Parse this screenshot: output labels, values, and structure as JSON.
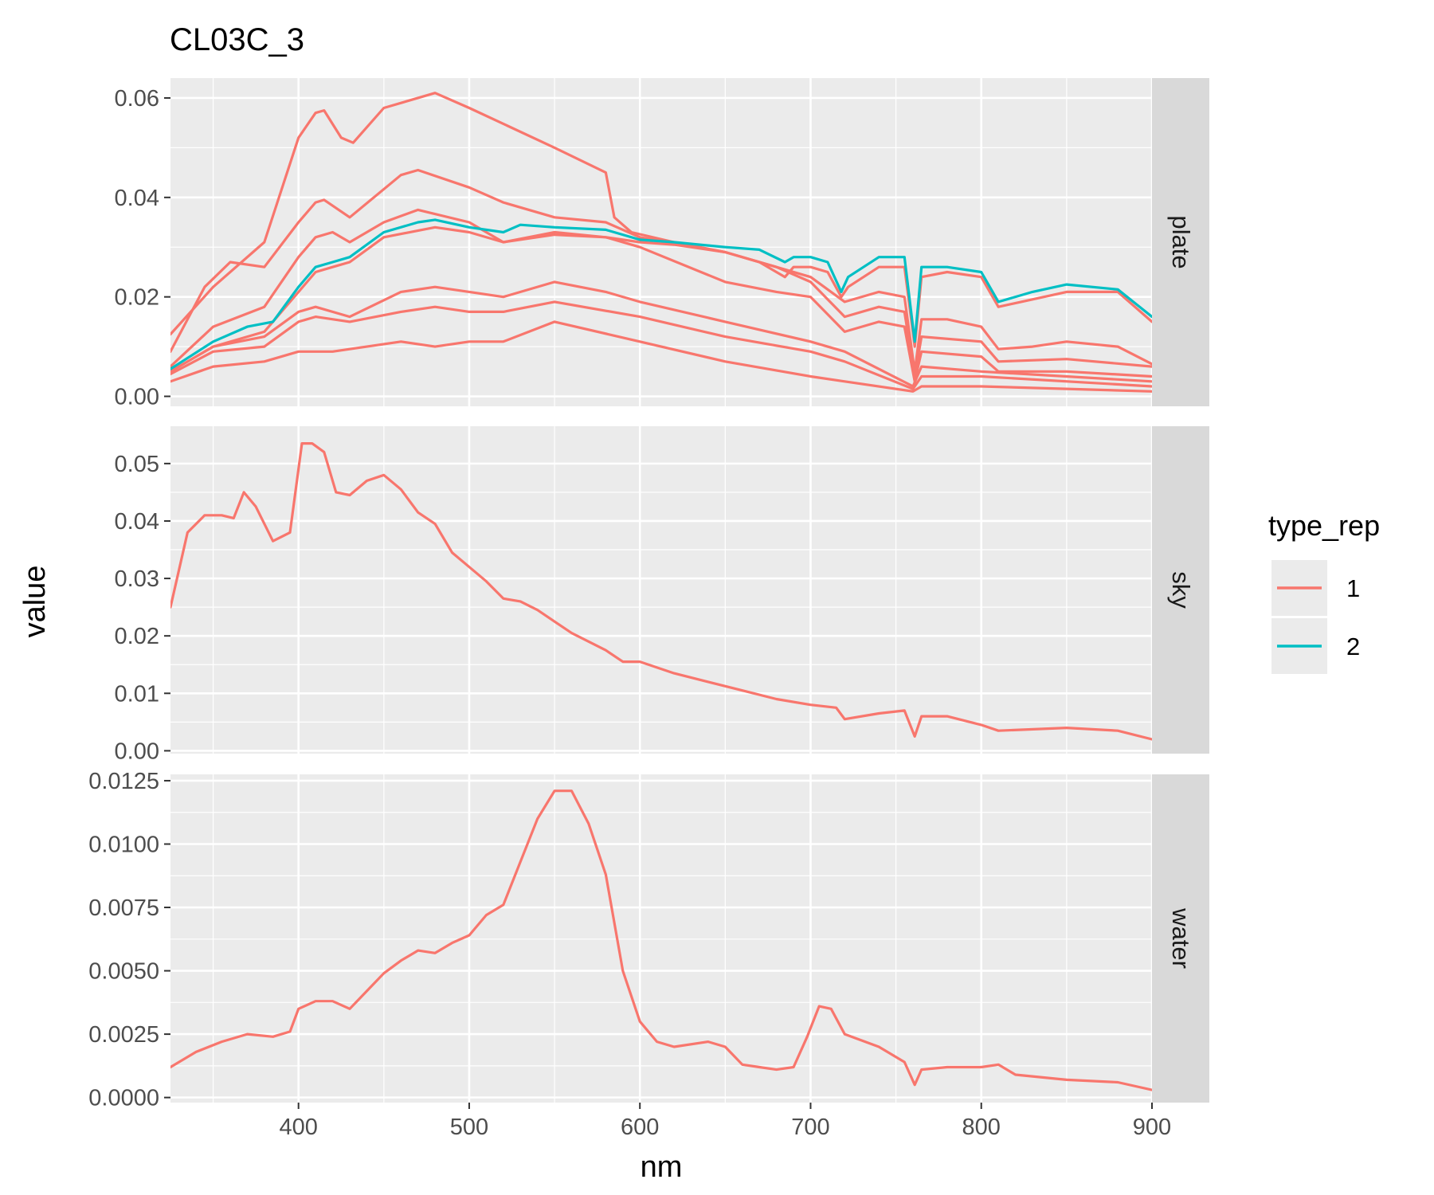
{
  "chart_data": {
    "type": "line",
    "title": "CL03C_3",
    "xlabel": "nm",
    "ylabel": "value",
    "xlim": [
      325,
      900
    ],
    "x_ticks": [
      400,
      500,
      600,
      700,
      800,
      900
    ],
    "grid": true,
    "legend": {
      "title": "type_rep",
      "position": "right",
      "items": [
        {
          "label": "1",
          "color": "#F8766D"
        },
        {
          "label": "2",
          "color": "#00BFC4"
        }
      ]
    },
    "facets": [
      {
        "label": "plate",
        "ylim": [
          -0.002,
          0.064
        ],
        "y_ticks": [
          0.0,
          0.02,
          0.04,
          0.06
        ],
        "y_tick_labels": [
          "0.00",
          "0.02",
          "0.04",
          "0.06"
        ],
        "series": [
          {
            "color": "#F8766D",
            "x": [
              325,
              350,
              380,
              400,
              410,
              415,
              425,
              432,
              450,
              480,
              500,
              550,
              580,
              585,
              595,
              620,
              650,
              680,
              700,
              720,
              740,
              755,
              761,
              765,
              780,
              800,
              810,
              830,
              850,
              880,
              900
            ],
            "y": [
              0.0125,
              0.022,
              0.031,
              0.052,
              0.057,
              0.0575,
              0.052,
              0.051,
              0.058,
              0.061,
              0.058,
              0.05,
              0.045,
              0.036,
              0.033,
              0.031,
              0.029,
              0.026,
              0.024,
              0.019,
              0.021,
              0.02,
              0.005,
              0.0155,
              0.0155,
              0.014,
              0.0095,
              0.01,
              0.011,
              0.01,
              0.0065
            ]
          },
          {
            "color": "#F8766D",
            "x": [
              325,
              345,
              360,
              380,
              400,
              410,
              415,
              430,
              460,
              470,
              500,
              520,
              550,
              580,
              600,
              650,
              680,
              700,
              720,
              740,
              755,
              761,
              765,
              800,
              810,
              850,
              900
            ],
            "y": [
              0.009,
              0.022,
              0.027,
              0.026,
              0.035,
              0.039,
              0.0395,
              0.036,
              0.0445,
              0.0455,
              0.042,
              0.039,
              0.036,
              0.035,
              0.032,
              0.029,
              0.026,
              0.023,
              0.016,
              0.018,
              0.017,
              0.004,
              0.012,
              0.011,
              0.007,
              0.0075,
              0.006
            ]
          },
          {
            "color": "#F8766D",
            "x": [
              325,
              350,
              380,
              400,
              410,
              420,
              430,
              450,
              470,
              500,
              520,
              550,
              580,
              600,
              650,
              680,
              700,
              720,
              740,
              755,
              761,
              765,
              800,
              810,
              850,
              900
            ],
            "y": [
              0.006,
              0.014,
              0.018,
              0.028,
              0.032,
              0.033,
              0.031,
              0.035,
              0.0375,
              0.035,
              0.031,
              0.033,
              0.032,
              0.03,
              0.023,
              0.021,
              0.02,
              0.013,
              0.015,
              0.014,
              0.003,
              0.009,
              0.008,
              0.005,
              0.005,
              0.004
            ]
          },
          {
            "color": "#F8766D",
            "x": [
              325,
              350,
              380,
              400,
              410,
              430,
              460,
              480,
              500,
              520,
              550,
              580,
              600,
              650,
              700,
              720,
              760,
              765,
              800,
              900
            ],
            "y": [
              0.005,
              0.01,
              0.012,
              0.017,
              0.018,
              0.016,
              0.021,
              0.022,
              0.021,
              0.02,
              0.023,
              0.021,
              0.019,
              0.015,
              0.011,
              0.009,
              0.002,
              0.006,
              0.005,
              0.003
            ]
          },
          {
            "color": "#F8766D",
            "x": [
              325,
              350,
              380,
              400,
              410,
              430,
              460,
              480,
              500,
              520,
              550,
              600,
              650,
              700,
              720,
              760,
              765,
              800,
              900
            ],
            "y": [
              0.0045,
              0.009,
              0.01,
              0.015,
              0.016,
              0.015,
              0.017,
              0.018,
              0.017,
              0.017,
              0.019,
              0.016,
              0.012,
              0.009,
              0.007,
              0.0015,
              0.004,
              0.004,
              0.002
            ]
          },
          {
            "color": "#F8766D",
            "x": [
              325,
              350,
              380,
              400,
              420,
              460,
              480,
              500,
              520,
              550,
              600,
              650,
              700,
              720,
              760,
              765,
              800,
              900
            ],
            "y": [
              0.003,
              0.006,
              0.007,
              0.009,
              0.009,
              0.011,
              0.01,
              0.011,
              0.011,
              0.015,
              0.011,
              0.007,
              0.004,
              0.003,
              0.001,
              0.002,
              0.002,
              0.001
            ]
          },
          {
            "color": "#F8766D",
            "x": [
              325,
              350,
              380,
              400,
              410,
              420,
              430,
              450,
              480,
              500,
              520,
              550,
              580,
              600,
              620,
              650,
              670,
              685,
              690,
              700,
              710,
              718,
              722,
              740,
              755,
              761,
              765,
              780,
              800,
              810,
              850,
              880,
              900
            ],
            "y": [
              0.005,
              0.01,
              0.013,
              0.021,
              0.025,
              0.026,
              0.027,
              0.032,
              0.034,
              0.033,
              0.031,
              0.0325,
              0.032,
              0.031,
              0.0305,
              0.029,
              0.027,
              0.024,
              0.026,
              0.026,
              0.025,
              0.02,
              0.022,
              0.026,
              0.026,
              0.01,
              0.024,
              0.025,
              0.024,
              0.018,
              0.021,
              0.021,
              0.015
            ]
          },
          {
            "color": "#00BFC4",
            "x": [
              325,
              350,
              370,
              385,
              400,
              410,
              420,
              430,
              450,
              470,
              480,
              500,
              520,
              530,
              550,
              580,
              600,
              620,
              650,
              670,
              685,
              690,
              700,
              710,
              718,
              722,
              740,
              755,
              761,
              765,
              780,
              800,
              810,
              830,
              850,
              880,
              900
            ],
            "y": [
              0.0055,
              0.011,
              0.014,
              0.015,
              0.022,
              0.026,
              0.027,
              0.028,
              0.033,
              0.035,
              0.0355,
              0.034,
              0.033,
              0.0345,
              0.034,
              0.0335,
              0.0315,
              0.031,
              0.03,
              0.0295,
              0.027,
              0.028,
              0.028,
              0.027,
              0.021,
              0.024,
              0.028,
              0.028,
              0.011,
              0.026,
              0.026,
              0.025,
              0.019,
              0.021,
              0.0225,
              0.0215,
              0.016
            ]
          }
        ]
      },
      {
        "label": "sky",
        "ylim": [
          -0.0005,
          0.0565
        ],
        "y_ticks": [
          0.0,
          0.01,
          0.02,
          0.03,
          0.04,
          0.05
        ],
        "y_tick_labels": [
          "0.00",
          "0.01",
          "0.02",
          "0.03",
          "0.04",
          "0.05"
        ],
        "series": [
          {
            "color": "#F8766D",
            "x": [
              325,
              335,
              345,
              355,
              362,
              368,
              375,
              385,
              395,
              402,
              408,
              415,
              422,
              430,
              440,
              450,
              460,
              470,
              480,
              490,
              500,
              510,
              520,
              530,
              540,
              550,
              560,
              580,
              590,
              600,
              620,
              640,
              660,
              680,
              700,
              715,
              720,
              740,
              755,
              761,
              765,
              780,
              800,
              810,
              850,
              880,
              900
            ],
            "y": [
              0.025,
              0.038,
              0.041,
              0.041,
              0.0405,
              0.045,
              0.0425,
              0.0365,
              0.038,
              0.0535,
              0.0535,
              0.052,
              0.045,
              0.0445,
              0.047,
              0.048,
              0.0455,
              0.0415,
              0.0395,
              0.0345,
              0.032,
              0.0295,
              0.0265,
              0.026,
              0.0245,
              0.0225,
              0.0205,
              0.0175,
              0.0155,
              0.0155,
              0.0135,
              0.012,
              0.0105,
              0.009,
              0.008,
              0.0075,
              0.0055,
              0.0065,
              0.007,
              0.0025,
              0.006,
              0.006,
              0.0045,
              0.0035,
              0.004,
              0.0035,
              0.002
            ]
          }
        ]
      },
      {
        "label": "water",
        "ylim": [
          -0.0002,
          0.01275
        ],
        "y_ticks": [
          0.0,
          0.0025,
          0.005,
          0.0075,
          0.01,
          0.0125
        ],
        "y_tick_labels": [
          "0.0000",
          "0.0025",
          "0.0050",
          "0.0075",
          "0.0100",
          "0.0125"
        ],
        "series": [
          {
            "color": "#F8766D",
            "x": [
              325,
              340,
              355,
              370,
              385,
              395,
              400,
              410,
              420,
              430,
              440,
              450,
              460,
              470,
              480,
              490,
              500,
              510,
              520,
              530,
              540,
              550,
              560,
              570,
              580,
              590,
              600,
              610,
              620,
              640,
              650,
              660,
              670,
              680,
              690,
              698,
              705,
              712,
              720,
              740,
              755,
              761,
              765,
              780,
              800,
              810,
              820,
              850,
              880,
              900
            ],
            "y": [
              0.0012,
              0.0018,
              0.0022,
              0.0025,
              0.0024,
              0.0026,
              0.0035,
              0.0038,
              0.0038,
              0.0035,
              0.0042,
              0.0049,
              0.0054,
              0.0058,
              0.0057,
              0.0061,
              0.0064,
              0.0072,
              0.0076,
              0.0093,
              0.011,
              0.0121,
              0.0121,
              0.0108,
              0.0088,
              0.005,
              0.003,
              0.0022,
              0.002,
              0.0022,
              0.002,
              0.0013,
              0.0012,
              0.0011,
              0.0012,
              0.0024,
              0.0036,
              0.0035,
              0.0025,
              0.002,
              0.0014,
              0.0005,
              0.0011,
              0.0012,
              0.0012,
              0.0013,
              0.0009,
              0.0007,
              0.0006,
              0.0003
            ]
          }
        ]
      }
    ]
  }
}
